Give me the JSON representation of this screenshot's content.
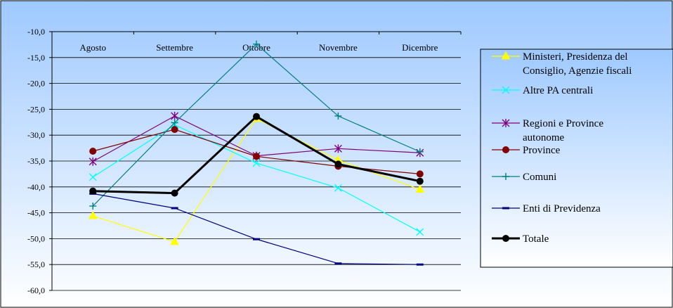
{
  "chart_data": {
    "type": "line",
    "title": "",
    "xlabel": "",
    "ylabel": "",
    "categories": [
      "Agosto",
      "Settembre",
      "Ottobre",
      "Novembre",
      "Dicembre"
    ],
    "y_ticks": [
      "-10,0",
      "-15,0",
      "-20,0",
      "-25,0",
      "-30,0",
      "-35,0",
      "-40,0",
      "-45,0",
      "-50,0",
      "-55,0",
      "-60,0"
    ],
    "ylim": [
      -60,
      -10
    ],
    "grid": true,
    "legend_position": "right",
    "background_gradient": [
      "#9ec9ff",
      "#ffffff"
    ],
    "series": [
      {
        "name": "Ministeri, Presidenza del Consiglio, Agenzie fiscali",
        "legend_lines": [
          "Ministeri, Presidenza del",
          "Consiglio, Agenzie fiscali"
        ],
        "color": "#ffff00",
        "marker": "triangle",
        "width": 1.2,
        "values": [
          -45.6,
          -50.6,
          -26.8,
          -34.8,
          -40.5
        ]
      },
      {
        "name": "Altre PA centrali",
        "legend_lines": [
          "Altre PA centrali"
        ],
        "color": "#00ffff",
        "marker": "x",
        "width": 1.2,
        "values": [
          -38.1,
          -28.0,
          -35.4,
          -40.2,
          -48.7
        ]
      },
      {
        "name": "Regioni e Province autonome",
        "legend_lines": [
          "Regioni e Province",
          "autonome"
        ],
        "color": "#800080",
        "marker": "star",
        "width": 1.2,
        "values": [
          -35.1,
          -26.3,
          -34.0,
          -32.6,
          -33.4
        ]
      },
      {
        "name": "Province",
        "legend_lines": [
          "Province"
        ],
        "color": "#800000",
        "marker": "circle",
        "width": 1.2,
        "values": [
          -33.1,
          -28.9,
          -34.1,
          -36.0,
          -37.5
        ]
      },
      {
        "name": "Comuni",
        "legend_lines": [
          "Comuni"
        ],
        "color": "#008080",
        "marker": "plus",
        "width": 1.2,
        "values": [
          -43.7,
          -27.6,
          -12.4,
          -26.3,
          -33.2
        ]
      },
      {
        "name": "Enti di Previdenza",
        "legend_lines": [
          "Enti di Previdenza"
        ],
        "color": "#000080",
        "marker": "dash",
        "width": 1.2,
        "values": [
          -41.3,
          -44.1,
          -50.1,
          -54.8,
          -55.0
        ]
      },
      {
        "name": "Totale",
        "legend_lines": [
          "Totale"
        ],
        "color": "#000000",
        "marker": "circle",
        "width": 3,
        "values": [
          -40.8,
          -41.2,
          -26.4,
          -35.6,
          -38.9
        ]
      }
    ]
  }
}
